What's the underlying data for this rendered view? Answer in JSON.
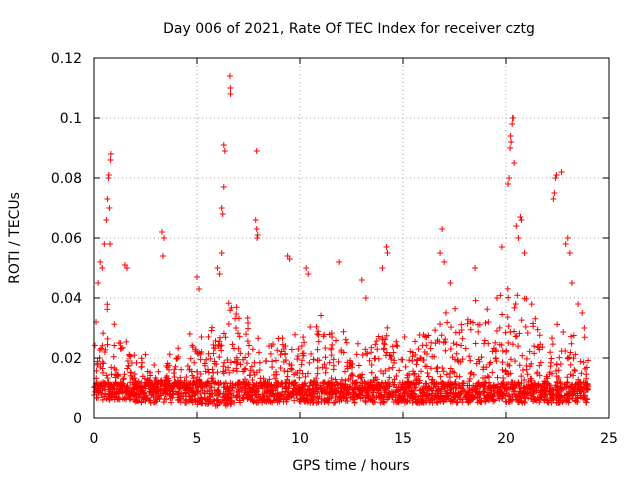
{
  "chart_data": {
    "type": "scatter",
    "title": "Day 006 of 2021, Rate Of TEC Index for receiver cztg",
    "xlabel": "GPS time / hours",
    "ylabel": "ROTI / TECUs",
    "xlim": [
      0,
      25
    ],
    "ylim": [
      0,
      0.12
    ],
    "xticks": [
      0,
      5,
      10,
      15,
      20,
      25
    ],
    "yticks": [
      0,
      0.02,
      0.04,
      0.06,
      0.08,
      0.1,
      0.12
    ],
    "xtick_labels": [
      "0",
      "5",
      "10",
      "15",
      "20",
      "25"
    ],
    "ytick_labels": [
      "0",
      "0.02",
      "0.04",
      "0.06",
      "0.08",
      "0.1",
      "0.12"
    ],
    "grid": true,
    "marker": "plus",
    "color": "#ff0000",
    "series": [
      {
        "name": "ROTI",
        "points": [
          [
            0.1,
            0.032
          ],
          [
            0.2,
            0.045
          ],
          [
            0.3,
            0.052
          ],
          [
            0.4,
            0.05
          ],
          [
            0.5,
            0.058
          ],
          [
            0.6,
            0.066
          ],
          [
            0.65,
            0.073
          ],
          [
            0.7,
            0.08
          ],
          [
            0.72,
            0.081
          ],
          [
            0.75,
            0.07
          ],
          [
            0.8,
            0.086
          ],
          [
            0.82,
            0.088
          ],
          [
            0.78,
            0.058
          ],
          [
            1.5,
            0.051
          ],
          [
            1.6,
            0.05
          ],
          [
            3.3,
            0.062
          ],
          [
            3.4,
            0.06
          ],
          [
            3.35,
            0.054
          ],
          [
            5.0,
            0.047
          ],
          [
            5.1,
            0.043
          ],
          [
            6.0,
            0.05
          ],
          [
            6.1,
            0.048
          ],
          [
            6.2,
            0.055
          ],
          [
            6.2,
            0.07
          ],
          [
            6.25,
            0.068
          ],
          [
            6.3,
            0.077
          ],
          [
            6.35,
            0.089
          ],
          [
            6.3,
            0.091
          ],
          [
            6.6,
            0.114
          ],
          [
            6.62,
            0.11
          ],
          [
            6.63,
            0.108
          ],
          [
            7.9,
            0.089
          ],
          [
            7.85,
            0.066
          ],
          [
            7.9,
            0.063
          ],
          [
            7.95,
            0.061
          ],
          [
            7.92,
            0.06
          ],
          [
            9.4,
            0.054
          ],
          [
            9.5,
            0.053
          ],
          [
            10.3,
            0.05
          ],
          [
            10.4,
            0.048
          ],
          [
            11.9,
            0.052
          ],
          [
            13.0,
            0.046
          ],
          [
            13.2,
            0.04
          ],
          [
            14.0,
            0.05
          ],
          [
            14.2,
            0.057
          ],
          [
            14.25,
            0.055
          ],
          [
            16.9,
            0.063
          ],
          [
            16.8,
            0.055
          ],
          [
            17.0,
            0.052
          ],
          [
            17.3,
            0.045
          ],
          [
            18.5,
            0.05
          ],
          [
            19.8,
            0.057
          ],
          [
            20.1,
            0.078
          ],
          [
            20.15,
            0.08
          ],
          [
            20.2,
            0.09
          ],
          [
            20.25,
            0.092
          ],
          [
            20.22,
            0.094
          ],
          [
            20.3,
            0.098
          ],
          [
            20.32,
            0.1
          ],
          [
            20.35,
            0.1
          ],
          [
            20.4,
            0.085
          ],
          [
            20.5,
            0.064
          ],
          [
            20.6,
            0.06
          ],
          [
            20.7,
            0.067
          ],
          [
            20.75,
            0.066
          ],
          [
            20.9,
            0.055
          ],
          [
            22.3,
            0.073
          ],
          [
            22.35,
            0.075
          ],
          [
            22.4,
            0.08
          ],
          [
            22.45,
            0.081
          ],
          [
            22.7,
            0.082
          ],
          [
            22.9,
            0.058
          ],
          [
            23.0,
            0.06
          ],
          [
            23.1,
            0.055
          ],
          [
            23.2,
            0.045
          ],
          [
            23.5,
            0.038
          ],
          [
            23.7,
            0.035
          ],
          [
            23.8,
            0.03
          ]
        ],
        "background_band": {
          "hours": [
            0,
            0.5,
            1,
            1.5,
            2,
            2.5,
            3,
            3.5,
            4,
            4.5,
            5,
            5.5,
            6,
            6.5,
            7,
            7.5,
            8,
            8.5,
            9,
            9.5,
            10,
            10.5,
            11,
            11.5,
            12,
            12.5,
            13,
            13.5,
            14,
            14.5,
            15,
            15.5,
            16,
            16.5,
            17,
            17.5,
            18,
            18.5,
            19,
            19.5,
            20,
            20.5,
            21,
            21.5,
            22,
            22.5,
            23,
            23.5,
            24
          ],
          "low": [
            0.006,
            0.006,
            0.006,
            0.006,
            0.005,
            0.005,
            0.005,
            0.005,
            0.005,
            0.005,
            0.004,
            0.004,
            0.004,
            0.004,
            0.005,
            0.005,
            0.005,
            0.005,
            0.005,
            0.005,
            0.005,
            0.005,
            0.005,
            0.005,
            0.005,
            0.005,
            0.005,
            0.005,
            0.005,
            0.005,
            0.005,
            0.005,
            0.005,
            0.005,
            0.005,
            0.005,
            0.005,
            0.005,
            0.005,
            0.005,
            0.005,
            0.005,
            0.005,
            0.005,
            0.005,
            0.005,
            0.005,
            0.005,
            0.005
          ],
          "high": [
            0.04,
            0.04,
            0.03,
            0.028,
            0.022,
            0.02,
            0.02,
            0.022,
            0.025,
            0.03,
            0.034,
            0.033,
            0.036,
            0.04,
            0.035,
            0.03,
            0.028,
            0.03,
            0.03,
            0.03,
            0.032,
            0.033,
            0.035,
            0.032,
            0.03,
            0.028,
            0.028,
            0.03,
            0.033,
            0.03,
            0.03,
            0.03,
            0.032,
            0.036,
            0.038,
            0.038,
            0.04,
            0.04,
            0.04,
            0.042,
            0.045,
            0.045,
            0.04,
            0.035,
            0.032,
            0.03,
            0.03,
            0.03,
            0.025
          ],
          "points_per_half_hour": 55
        }
      }
    ]
  }
}
